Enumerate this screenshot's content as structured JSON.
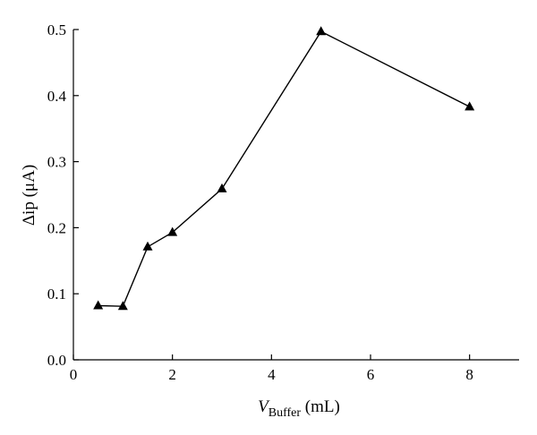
{
  "chart_data": {
    "type": "line",
    "xlabel": {
      "var": "V",
      "sub": "Buffer",
      "unit": " (mL)"
    },
    "ylabel": "Δip (μA)",
    "xlim": [
      0,
      9
    ],
    "ylim": [
      0,
      0.5
    ],
    "xticks": [
      0,
      2,
      4,
      6,
      8
    ],
    "yticks": [
      0.0,
      0.1,
      0.2,
      0.3,
      0.4,
      0.5
    ],
    "xtick_labels": [
      "0",
      "2",
      "4",
      "6",
      "8"
    ],
    "ytick_labels": [
      "0.0",
      "0.1",
      "0.2",
      "0.3",
      "0.4",
      "0.5"
    ],
    "grid": false,
    "marker": "triangle",
    "color": "#000000",
    "series": [
      {
        "x": [
          0.5,
          1.0,
          1.5,
          2.0,
          3.0,
          5.0,
          8.0
        ],
        "y": [
          0.082,
          0.081,
          0.171,
          0.193,
          0.259,
          0.497,
          0.383
        ]
      }
    ]
  }
}
